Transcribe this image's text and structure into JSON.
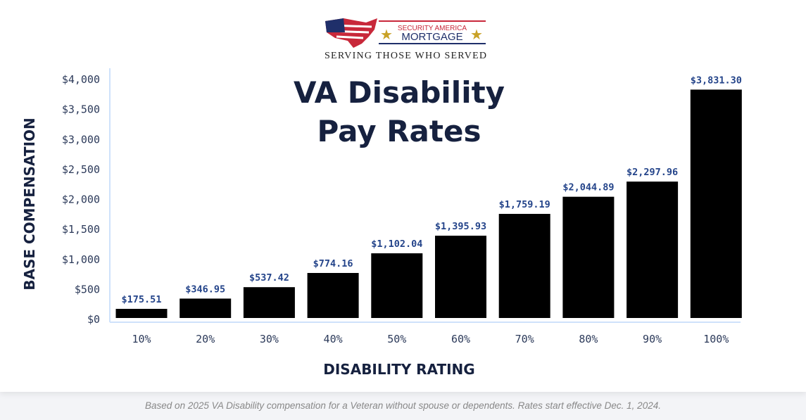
{
  "logo": {
    "line1": "SECURITY AMERICA",
    "line2": "MORTGAGE",
    "tagline": "SERVING THOSE WHO SERVED"
  },
  "chart_data": {
    "type": "bar",
    "title": [
      "VA Disability",
      "Pay Rates"
    ],
    "xlabel": "DISABILITY RATING",
    "ylabel": "BASE COMPENSATION",
    "categories": [
      "10%",
      "20%",
      "30%",
      "40%",
      "50%",
      "60%",
      "70%",
      "80%",
      "90%",
      "100%"
    ],
    "values": [
      175.51,
      346.95,
      537.42,
      774.16,
      1102.04,
      1395.93,
      1759.19,
      2044.89,
      2297.96,
      3831.3
    ],
    "data_labels": [
      "$175.51",
      "$346.95",
      "$537.42",
      "$774.16",
      "$1,102.04",
      "$1,395.93",
      "$1,759.19",
      "$2,044.89",
      "$2,297.96",
      "$3,831.30"
    ],
    "yticks": [
      0,
      500,
      1000,
      1500,
      2000,
      2500,
      3000,
      3500,
      4000
    ],
    "ytick_labels": [
      "$0",
      "$500",
      "$1,000",
      "$1,500",
      "$2,000",
      "$2,500",
      "$3,000",
      "$3,500",
      "$4,000"
    ],
    "ylim": [
      0,
      4000
    ],
    "grid": false,
    "colors": {
      "bar": "#000000",
      "axis": "#cfe2fb",
      "label": "#24448a",
      "title": "#16213f"
    }
  },
  "footnote": "Based on 2025 VA Disability compensation for a Veteran without spouse or dependents. Rates start effective Dec. 1, 2024."
}
